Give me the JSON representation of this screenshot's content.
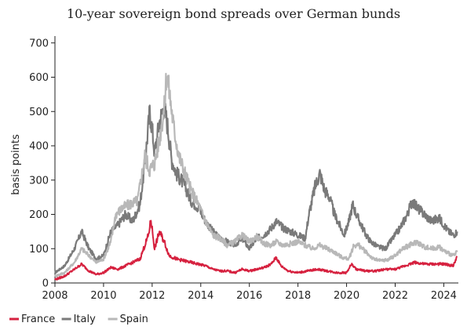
{
  "chart_data": {
    "type": "line",
    "title": "10-year sovereign bond spreads over German bunds",
    "ylabel": "basis points",
    "xlabel": "",
    "xlim": [
      2008.0,
      2024.6
    ],
    "ylim": [
      0,
      720
    ],
    "x_ticks": [
      2008,
      2010,
      2012,
      2014,
      2016,
      2018,
      2020,
      2022,
      2024
    ],
    "y_ticks": [
      0,
      100,
      200,
      300,
      400,
      500,
      600,
      700
    ],
    "legend_position": "bottom-left",
    "series": [
      {
        "name": "Italy",
        "color": "#7a7a7a",
        "x": [
          2008.0,
          2008.4,
          2008.8,
          2009.1,
          2009.4,
          2009.7,
          2010.0,
          2010.3,
          2010.6,
          2010.9,
          2011.2,
          2011.5,
          2011.7,
          2011.9,
          2012.0,
          2012.1,
          2012.3,
          2012.5,
          2012.65,
          2012.8,
          2013.0,
          2013.3,
          2013.6,
          2013.9,
          2014.2,
          2014.5,
          2014.8,
          2015.1,
          2015.4,
          2015.7,
          2016.0,
          2016.3,
          2016.6,
          2016.9,
          2017.1,
          2017.4,
          2017.7,
          2018.0,
          2018.3,
          2018.45,
          2018.7,
          2018.9,
          2019.1,
          2019.3,
          2019.5,
          2019.7,
          2019.9,
          2020.1,
          2020.25,
          2020.4,
          2020.6,
          2020.8,
          2021.0,
          2021.3,
          2021.6,
          2021.9,
          2022.2,
          2022.5,
          2022.7,
          2022.9,
          2023.2,
          2023.5,
          2023.8,
          2024.0,
          2024.2,
          2024.4,
          2024.55
        ],
        "values": [
          30,
          50,
          100,
          150,
          100,
          70,
          80,
          150,
          170,
          200,
          180,
          230,
          350,
          500,
          450,
          380,
          470,
          520,
          450,
          360,
          320,
          290,
          240,
          220,
          180,
          150,
          130,
          120,
          110,
          130,
          100,
          130,
          140,
          160,
          180,
          160,
          150,
          140,
          130,
          200,
          280,
          320,
          270,
          250,
          200,
          170,
          140,
          180,
          230,
          200,
          170,
          140,
          120,
          105,
          100,
          130,
          160,
          200,
          240,
          220,
          200,
          180,
          190,
          170,
          150,
          140,
          150
        ]
      },
      {
        "name": "Spain",
        "color": "#b8b8b8",
        "x": [
          2008.0,
          2008.4,
          2008.8,
          2009.1,
          2009.4,
          2009.7,
          2010.0,
          2010.3,
          2010.5,
          2010.8,
          2011.1,
          2011.4,
          2011.7,
          2011.9,
          2012.1,
          2012.3,
          2012.5,
          2012.6,
          2012.7,
          2012.9,
          2013.1,
          2013.3,
          2013.6,
          2013.9,
          2014.2,
          2014.5,
          2014.8,
          2015.1,
          2015.4,
          2015.7,
          2016.0,
          2016.3,
          2016.6,
          2016.9,
          2017.1,
          2017.4,
          2017.7,
          2018.0,
          2018.3,
          2018.6,
          2018.9,
          2019.2,
          2019.5,
          2019.8,
          2020.1,
          2020.3,
          2020.5,
          2020.8,
          2021.1,
          2021.4,
          2021.7,
          2022.0,
          2022.3,
          2022.6,
          2022.9,
          2023.2,
          2023.5,
          2023.8,
          2024.1,
          2024.4,
          2024.55
        ],
        "values": [
          20,
          30,
          60,
          100,
          80,
          60,
          70,
          120,
          200,
          220,
          230,
          240,
          370,
          330,
          350,
          420,
          510,
          620,
          560,
          450,
          370,
          330,
          270,
          230,
          180,
          140,
          130,
          110,
          120,
          140,
          120,
          135,
          115,
          110,
          120,
          110,
          115,
          120,
          110,
          100,
          110,
          100,
          90,
          75,
          70,
          110,
          110,
          90,
          70,
          65,
          68,
          80,
          100,
          110,
          120,
          105,
          100,
          105,
          90,
          80,
          90
        ]
      },
      {
        "name": "France",
        "color": "#d6213f",
        "x": [
          2008.0,
          2008.4,
          2008.8,
          2009.1,
          2009.4,
          2009.7,
          2010.0,
          2010.3,
          2010.6,
          2010.9,
          2011.2,
          2011.5,
          2011.7,
          2011.85,
          2011.95,
          2012.1,
          2012.3,
          2012.5,
          2012.7,
          2013.0,
          2013.3,
          2013.6,
          2013.9,
          2014.2,
          2014.5,
          2014.8,
          2015.1,
          2015.4,
          2015.7,
          2016.0,
          2016.3,
          2016.6,
          2016.9,
          2017.1,
          2017.3,
          2017.6,
          2018.0,
          2018.4,
          2018.8,
          2019.2,
          2019.6,
          2020.0,
          2020.2,
          2020.4,
          2020.8,
          2021.2,
          2021.6,
          2022.0,
          2022.4,
          2022.8,
          2023.2,
          2023.6,
          2024.0,
          2024.4,
          2024.5,
          2024.55
        ],
        "values": [
          10,
          20,
          40,
          55,
          35,
          25,
          30,
          45,
          40,
          50,
          60,
          70,
          110,
          140,
          185,
          100,
          150,
          120,
          80,
          70,
          65,
          60,
          55,
          50,
          40,
          35,
          35,
          30,
          40,
          35,
          40,
          45,
          55,
          75,
          50,
          35,
          30,
          35,
          40,
          35,
          30,
          30,
          55,
          40,
          35,
          35,
          40,
          40,
          50,
          60,
          55,
          55,
          55,
          50,
          70,
          78
        ]
      }
    ]
  },
  "legend": [
    {
      "label": "France",
      "color": "#d6213f"
    },
    {
      "label": "Italy",
      "color": "#7a7a7a"
    },
    {
      "label": "Spain",
      "color": "#b8b8b8"
    }
  ]
}
